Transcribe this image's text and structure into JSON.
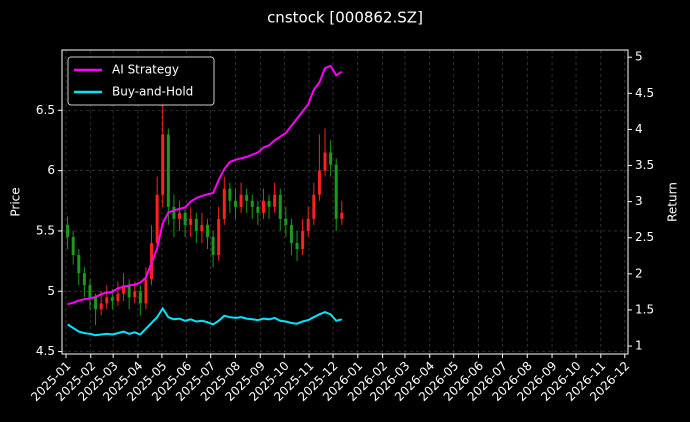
{
  "chart_data": {
    "type": "candlestick-returns",
    "title": "cnstock [000862.SZ]",
    "y_label": "Price",
    "y2_label": "Return",
    "x": [
      "2025-01-03",
      "2025-01-10",
      "2025-01-17",
      "2025-01-24",
      "2025-01-31",
      "2025-02-07",
      "2025-02-14",
      "2025-02-21",
      "2025-02-28",
      "2025-03-07",
      "2025-03-14",
      "2025-03-21",
      "2025-03-28",
      "2025-04-04",
      "2025-04-11",
      "2025-04-18",
      "2025-04-25",
      "2025-05-02",
      "2025-05-09",
      "2025-05-16",
      "2025-05-23",
      "2025-05-30",
      "2025-06-06",
      "2025-06-13",
      "2025-06-20",
      "2025-06-27",
      "2025-07-04",
      "2025-07-11",
      "2025-07-18",
      "2025-07-25",
      "2025-08-01",
      "2025-08-08",
      "2025-08-15",
      "2025-08-22",
      "2025-08-29",
      "2025-09-05",
      "2025-09-12",
      "2025-09-19",
      "2025-09-26",
      "2025-10-03",
      "2025-10-10",
      "2025-10-17",
      "2025-10-24",
      "2025-10-31",
      "2025-11-07",
      "2025-11-14",
      "2025-11-21",
      "2025-11-28",
      "2025-12-05",
      "2025-12-12"
    ],
    "open": [
      5.55,
      5.45,
      5.3,
      5.15,
      5.05,
      4.95,
      4.85,
      4.9,
      4.95,
      4.92,
      4.98,
      5.05,
      4.95,
      5.0,
      4.9,
      5.1,
      5.4,
      5.8,
      6.3,
      5.7,
      5.6,
      5.65,
      5.55,
      5.6,
      5.5,
      5.55,
      5.45,
      5.3,
      5.6,
      5.85,
      5.75,
      5.7,
      5.8,
      5.75,
      5.7,
      5.65,
      5.75,
      5.7,
      5.8,
      5.6,
      5.55,
      5.4,
      5.35,
      5.5,
      5.6,
      5.8,
      6.0,
      6.15,
      6.05,
      5.6
    ],
    "high": [
      5.62,
      5.5,
      5.35,
      5.2,
      5.1,
      4.98,
      5.0,
      5.05,
      5.02,
      5.08,
      5.15,
      5.1,
      5.08,
      5.05,
      5.2,
      5.55,
      5.95,
      6.65,
      6.35,
      5.8,
      5.75,
      5.7,
      5.7,
      5.65,
      5.65,
      5.6,
      5.5,
      5.7,
      5.95,
      5.9,
      5.85,
      5.9,
      5.85,
      5.8,
      5.75,
      5.85,
      5.8,
      5.9,
      5.85,
      5.7,
      5.6,
      5.5,
      5.6,
      5.7,
      5.9,
      6.3,
      6.35,
      6.25,
      6.1,
      5.75
    ],
    "low": [
      5.35,
      5.22,
      5.05,
      4.95,
      4.85,
      4.72,
      4.8,
      4.85,
      4.85,
      4.88,
      4.92,
      4.85,
      4.9,
      4.8,
      4.85,
      5.05,
      5.35,
      5.7,
      5.55,
      5.45,
      5.5,
      5.45,
      5.45,
      5.4,
      5.4,
      5.35,
      5.2,
      5.25,
      5.55,
      5.65,
      5.6,
      5.65,
      5.65,
      5.6,
      5.55,
      5.6,
      5.6,
      5.65,
      5.5,
      5.45,
      5.3,
      5.25,
      5.3,
      5.45,
      5.55,
      5.75,
      5.95,
      5.95,
      5.5,
      5.55
    ],
    "close": [
      5.45,
      5.3,
      5.15,
      5.05,
      4.95,
      4.85,
      4.9,
      4.95,
      4.92,
      4.98,
      5.05,
      4.95,
      5.0,
      4.9,
      5.1,
      5.4,
      5.8,
      6.3,
      5.7,
      5.6,
      5.65,
      5.55,
      5.6,
      5.5,
      5.55,
      5.45,
      5.3,
      5.6,
      5.85,
      5.75,
      5.7,
      5.8,
      5.75,
      5.7,
      5.65,
      5.75,
      5.7,
      5.8,
      5.6,
      5.55,
      5.4,
      5.35,
      5.5,
      5.6,
      5.8,
      6.0,
      6.15,
      6.05,
      5.6,
      5.65
    ],
    "up_color": "#ff2020",
    "down_color": "#1a9a1a",
    "series": [
      {
        "name": "AI Strategy",
        "color": "#ff00ff",
        "axis": "y2",
        "values": [
          1.58,
          1.6,
          1.63,
          1.65,
          1.66,
          1.68,
          1.72,
          1.74,
          1.75,
          1.8,
          1.82,
          1.84,
          1.85,
          1.88,
          1.95,
          2.15,
          2.35,
          2.7,
          2.85,
          2.88,
          2.9,
          2.92,
          3.0,
          3.05,
          3.08,
          3.1,
          3.12,
          3.3,
          3.45,
          3.55,
          3.58,
          3.6,
          3.62,
          3.65,
          3.68,
          3.75,
          3.78,
          3.85,
          3.9,
          3.95,
          4.05,
          4.15,
          4.25,
          4.35,
          4.55,
          4.65,
          4.85,
          4.88,
          4.75,
          4.8
        ]
      },
      {
        "name": "Buy-and-Hold",
        "color": "#00e5ff",
        "axis": "y2",
        "values": [
          1.3,
          1.25,
          1.2,
          1.18,
          1.17,
          1.15,
          1.16,
          1.17,
          1.16,
          1.18,
          1.2,
          1.17,
          1.19,
          1.16,
          1.24,
          1.32,
          1.4,
          1.52,
          1.4,
          1.37,
          1.38,
          1.35,
          1.37,
          1.34,
          1.35,
          1.33,
          1.3,
          1.35,
          1.42,
          1.4,
          1.39,
          1.4,
          1.38,
          1.37,
          1.36,
          1.38,
          1.37,
          1.39,
          1.35,
          1.34,
          1.32,
          1.31,
          1.34,
          1.36,
          1.4,
          1.44,
          1.47,
          1.44,
          1.35,
          1.37
        ]
      }
    ],
    "xlim": [
      "2024-12-27",
      "2026-12-05"
    ],
    "xticks": [
      "2025-01",
      "2025-02",
      "2025-03",
      "2025-04",
      "2025-05",
      "2025-06",
      "2025-07",
      "2025-08",
      "2025-09",
      "2025-10",
      "2025-11",
      "2025-12",
      "2026-01",
      "2026-02",
      "2026-03",
      "2026-04",
      "2026-05",
      "2026-06",
      "2026-07",
      "2026-08",
      "2026-09",
      "2026-10",
      "2026-11",
      "2026-12"
    ],
    "ylim": [
      4.48,
      7.0
    ],
    "yticks": [
      4.5,
      5.0,
      5.5,
      6.0,
      6.5
    ],
    "y2lim": [
      0.89,
      5.1
    ],
    "y2ticks": [
      1.0,
      1.5,
      2.0,
      2.5,
      3.0,
      3.5,
      4.0,
      4.5,
      5.0
    ],
    "grid": true,
    "legend": "upper left"
  }
}
